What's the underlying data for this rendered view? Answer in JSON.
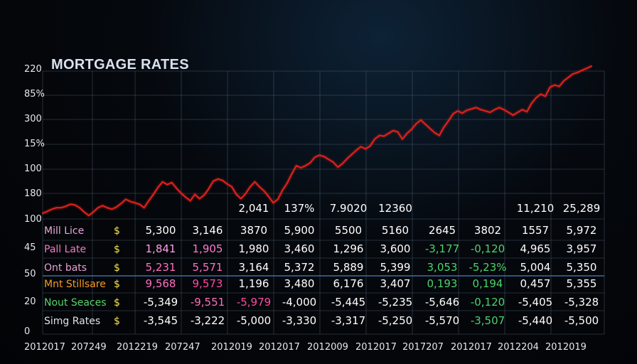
{
  "chart_data": {
    "type": "line",
    "title": "MORTGAGE RATES",
    "y_tick_labels": [
      "220",
      "85%",
      "300",
      "15%",
      "100",
      "180",
      "100",
      "45",
      "50",
      "20",
      "0"
    ],
    "x_tick_labels": [
      "2012017",
      "207249",
      "2012219",
      "207247",
      "2012019",
      "2012017",
      "2012009",
      "2012017",
      "2017207",
      "2012017",
      "2012204",
      "2012019"
    ],
    "grid": true,
    "series": [
      {
        "color": "#e0201b",
        "x": [
          0,
          1,
          2,
          3,
          4,
          5,
          6,
          7,
          8,
          9,
          10,
          11,
          12,
          13,
          14,
          15,
          16,
          17,
          18,
          19,
          20,
          21,
          22,
          23,
          24,
          25,
          26,
          27,
          28,
          29,
          30,
          31,
          32,
          33,
          34,
          35,
          36,
          37,
          38,
          39,
          40,
          41,
          42,
          43,
          44,
          45,
          46,
          47,
          48,
          49,
          50,
          51,
          52,
          53,
          54,
          55,
          56,
          57,
          58,
          59,
          60,
          61,
          62,
          63,
          64,
          65,
          66,
          67,
          68,
          69,
          70,
          71,
          72,
          73,
          74,
          75,
          76,
          77,
          78,
          79,
          80,
          81,
          82,
          83,
          84,
          85,
          86,
          87,
          88,
          89,
          90,
          91,
          92,
          93,
          94,
          95,
          96,
          97,
          98,
          99,
          100,
          101,
          102,
          103,
          104,
          105,
          106,
          107,
          108,
          109,
          110,
          111,
          112,
          113,
          114,
          115,
          116,
          117,
          118,
          119
        ],
        "y": [
          100,
          103,
          106,
          108,
          108,
          110,
          113,
          112,
          108,
          102,
          97,
          102,
          108,
          111,
          108,
          106,
          109,
          114,
          120,
          117,
          115,
          113,
          108,
          118,
          127,
          137,
          145,
          141,
          144,
          136,
          129,
          123,
          118,
          127,
          121,
          126,
          135,
          146,
          149,
          147,
          142,
          138,
          127,
          121,
          128,
          138,
          145,
          138,
          132,
          124,
          115,
          120,
          133,
          143,
          156,
          168,
          165,
          168,
          172,
          180,
          183,
          181,
          177,
          173,
          166,
          171,
          178,
          184,
          190,
          195,
          192,
          196,
          206,
          211,
          210,
          214,
          218,
          216,
          206,
          214,
          220,
          228,
          233,
          227,
          221,
          215,
          211,
          223,
          232,
          242,
          246,
          243,
          247,
          249,
          251,
          248,
          246,
          244,
          248,
          251,
          248,
          244,
          240,
          244,
          248,
          245,
          257,
          265,
          270,
          267,
          280,
          283,
          281,
          289,
          294,
          299,
          301,
          304,
          307,
          310
        ]
      }
    ],
    "table": {
      "header_values": [
        "2,041",
        "137%",
        "7.9020",
        "12360",
        "",
        "",
        "",
        "11,210",
        "25,289"
      ],
      "rows": [
        {
          "label": "Mill Lice",
          "label_color": "#e6a8d8",
          "symbol": "$",
          "values": [
            "5,300",
            "3,146",
            "3870",
            "5,900",
            "5500",
            "5160",
            "2645",
            "3802",
            "1557",
            "5,972"
          ],
          "colors": [
            "#ffffff",
            "#ffffff",
            "#ffffff",
            "#ffffff",
            "#ffffff",
            "#ffffff",
            "#ffffff",
            "#ffffff",
            "#ffffff",
            "#ffffff"
          ]
        },
        {
          "label": "Pall Late",
          "label_color": "#f07ac8",
          "symbol": "$",
          "values": [
            "1,841",
            "1,905",
            "1,980",
            "3,460",
            "1,296",
            "3,600",
            "-3,177",
            "-0,120",
            "4,965",
            "3,957"
          ],
          "colors": [
            "#ff9ee4",
            "#ff7ad0",
            "#ffffff",
            "#ffffff",
            "#ffffff",
            "#ffffff",
            "#4ad46a",
            "#4ad46a",
            "#ffffff",
            "#ffffff"
          ]
        },
        {
          "label": "Ont bats",
          "label_color": "#e7a0d4",
          "symbol": "$",
          "values": [
            "5,231",
            "5,571",
            "3,164",
            "5,372",
            "5,889",
            "5,399",
            "3,053",
            "-5,23%",
            "5,004",
            "5,350"
          ],
          "colors": [
            "#ff6fbf",
            "#ff6fbf",
            "#ffffff",
            "#ffffff",
            "#ffffff",
            "#ffffff",
            "#4ad46a",
            "#4ad46a",
            "#ffffff",
            "#ffffff"
          ]
        },
        {
          "label": "Mnt Stillsare",
          "label_color": "#f59a20",
          "symbol": "$",
          "values": [
            "9,568",
            "9,573",
            "1,196",
            "3,480",
            "6,176",
            "3,407",
            "0,193",
            "0,194",
            "0,457",
            "5,355"
          ],
          "colors": [
            "#ff6fbf",
            "#ff4aa8",
            "#ffffff",
            "#ffffff",
            "#ffffff",
            "#ffffff",
            "#4ad46a",
            "#4ad46a",
            "#ffffff",
            "#ffffff"
          ]
        },
        {
          "label": "Nout Seaces",
          "label_color": "#56d46c",
          "symbol": "$",
          "values": [
            "-5,349",
            "-9,551",
            "-5,979",
            "-4,000",
            "-5,445",
            "-5,235",
            "-5,646",
            "-0,120",
            "-5,405",
            "-5,328"
          ],
          "colors": [
            "#ffffff",
            "#ff6fbf",
            "#ff4aa8",
            "#ffffff",
            "#ffffff",
            "#ffffff",
            "#ffffff",
            "#4ad46a",
            "#ffffff",
            "#ffffff"
          ]
        },
        {
          "label": "Simg Rates",
          "label_color": "#dde3ea",
          "symbol": "$",
          "values": [
            "-3,545",
            "-3,222",
            "-5,000",
            "-3,330",
            "-3,317",
            "-5,250",
            "-5,570",
            "-3,507",
            "-5,440",
            "-5,500"
          ],
          "colors": [
            "#ffffff",
            "#ffffff",
            "#ffffff",
            "#ffffff",
            "#ffffff",
            "#ffffff",
            "#ffffff",
            "#4ad46a",
            "#ffffff",
            "#ffffff"
          ]
        }
      ]
    }
  },
  "colors": {
    "grid": "#556677",
    "axis_text": "#e4e8ee",
    "line": "#e0201b",
    "symbol": "#f2e24a",
    "title": "#d9e1ee",
    "separator": "#4a7fc0"
  }
}
